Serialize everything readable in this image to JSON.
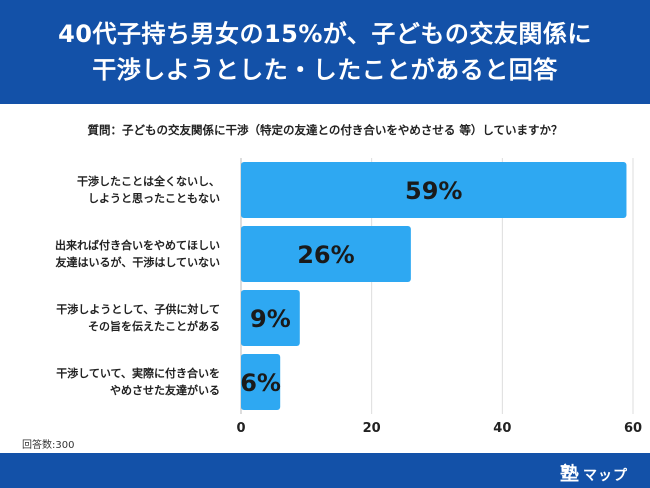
{
  "header": {
    "line1": "40代子持ち男女の15%が、子どもの交友関係に",
    "line2": "干渉しようとした・したことがあると回答"
  },
  "question": "質問：子どもの交友関係に干渉（特定の友達との付き合いをやめさせる 等）していますか？",
  "sample_size": "回答数:300",
  "brand": {
    "kanji": "塾",
    "kana": "マップ"
  },
  "colors": {
    "bar": "#2ea8f2",
    "header": "#1351a8",
    "grid": "#dddddd"
  },
  "chart_data": {
    "type": "bar",
    "orientation": "horizontal",
    "categories": [
      [
        "干渉したことは全くないし、",
        "しようと思ったこともない"
      ],
      [
        "出来れば付き合いをやめてほしい",
        "友達はいるが、干渉はしていない"
      ],
      [
        "干渉しようとして、子供に対して",
        "その旨を伝えたことがある"
      ],
      [
        "干渉していて、実際に付き合いを",
        "やめさせた友達がいる"
      ]
    ],
    "values": [
      59,
      26,
      9,
      6
    ],
    "data_labels": [
      "59%",
      "26%",
      "9%",
      "6%"
    ],
    "xlim": [
      0,
      60
    ],
    "xticks": [
      "0",
      "20",
      "40",
      "60"
    ],
    "grid": true
  }
}
